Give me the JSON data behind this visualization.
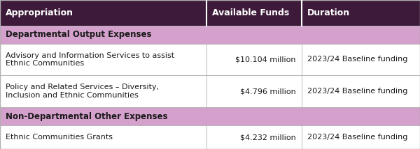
{
  "header": [
    "Appropriation",
    "Available Funds",
    "Duration"
  ],
  "header_bg": "#3d1a3a",
  "header_text_color": "#ffffff",
  "section_bg": "#d4a0cc",
  "section_text_color": "#1a1a1a",
  "row_bg": "#ffffff",
  "row_text_color": "#1a1a1a",
  "border_color": "#b0b0b0",
  "col_splits": [
    0.492,
    0.718
  ],
  "sections": [
    {
      "section_label": "Departmental Output Expenses",
      "rows": [
        {
          "appropriation": "Advisory and Information Services to assist\nEthnic Communities",
          "funds": "$10.104 million",
          "duration": "2023/24 Baseline funding"
        },
        {
          "appropriation": "Policy and Related Services – Diversity,\nInclusion and Ethnic Communities",
          "funds": "$4.796 million",
          "duration": "2023/24 Baseline funding"
        }
      ]
    },
    {
      "section_label": "Non-Departmental Other Expenses",
      "rows": [
        {
          "appropriation": "Ethnic Communities Grants",
          "funds": "$4.232 million",
          "duration": "2023/24 Baseline funding"
        }
      ]
    }
  ],
  "font_size_header": 9.0,
  "font_size_section": 8.5,
  "font_size_row": 8.0,
  "row_heights": {
    "header": 0.14,
    "section": 0.1,
    "data_2line": 0.175,
    "data_1line": 0.13
  },
  "figsize": [
    6.0,
    2.14
  ],
  "dpi": 100
}
